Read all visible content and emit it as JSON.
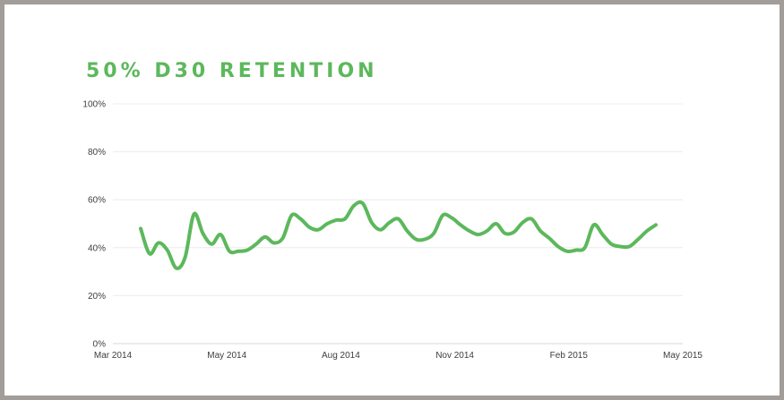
{
  "chart_data": {
    "type": "line",
    "title": "50% D30 RETENTION",
    "xlabel": "",
    "ylabel": "",
    "x_ticks": [
      "Mar 2014",
      "May 2014",
      "Aug 2014",
      "Nov 2014",
      "Feb 2015",
      "May 2015"
    ],
    "y_ticks": [
      "0%",
      "20%",
      "40%",
      "60%",
      "80%",
      "100%"
    ],
    "ylim": [
      0,
      100
    ],
    "grid": true,
    "legend": "none",
    "accent_color": "#5cb85c",
    "series": [
      {
        "name": "",
        "color": "#5cb85c",
        "values": [
          48,
          37.5,
          42,
          39,
          31.5,
          36,
          54,
          46,
          41.5,
          45.5,
          38.5,
          38.5,
          39,
          41.5,
          44.5,
          42,
          44,
          53.5,
          52,
          48.5,
          47.5,
          50,
          51.5,
          52,
          57.5,
          58.5,
          50.5,
          47.5,
          50.5,
          52,
          47,
          43.5,
          43.5,
          46,
          53.5,
          52.5,
          49.5,
          47,
          45.5,
          47,
          50,
          46,
          46.5,
          50.5,
          52,
          47,
          44,
          40.5,
          38.5,
          39,
          40,
          49.5,
          45.5,
          41.5,
          40.5,
          40.5,
          43.5,
          47,
          49.5
        ]
      }
    ]
  }
}
